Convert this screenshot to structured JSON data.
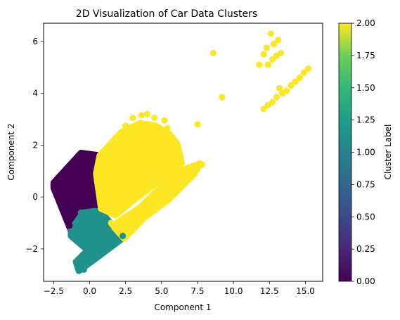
{
  "chart_data": {
    "type": "scatter",
    "title": "2D Visualization of Car Data Clusters",
    "xlabel": "Component 1",
    "ylabel": "Component 2",
    "xlim": [
      -3.2,
      16.2
    ],
    "ylim": [
      -3.25,
      6.7
    ],
    "xticks": [
      -2.5,
      0.0,
      2.5,
      5.0,
      7.5,
      10.0,
      12.5,
      15.0
    ],
    "xtick_labels": [
      "−2.5",
      "0.0",
      "2.5",
      "5.0",
      "7.5",
      "10.0",
      "12.5",
      "15.0"
    ],
    "yticks": [
      -2,
      0,
      2,
      4,
      6
    ],
    "ytick_labels": [
      "−2",
      "0",
      "2",
      "4",
      "6"
    ],
    "grid": false,
    "colorbar": {
      "label": "Cluster Label",
      "range": [
        0.0,
        2.0
      ],
      "ticks": [
        0.0,
        0.25,
        0.5,
        0.75,
        1.0,
        1.25,
        1.5,
        1.75,
        2.0
      ],
      "tick_labels": [
        "0.00",
        "0.25",
        "0.50",
        "0.75",
        "1.00",
        "1.25",
        "1.50",
        "1.75",
        "2.00"
      ],
      "colormap": "viridis"
    },
    "cluster_colors": {
      "0": "#440154",
      "1": "#21918c",
      "2": "#fde725"
    },
    "regions": [
      {
        "cluster": 0,
        "polygon": [
          [
            -2.5,
            0.55
          ],
          [
            -0.6,
            1.7
          ],
          [
            0.7,
            1.6
          ],
          [
            0.45,
            0.9
          ],
          [
            0.7,
            -0.3
          ],
          [
            0.2,
            -0.55
          ],
          [
            -0.6,
            -1.05
          ],
          [
            -1.3,
            -1.3
          ],
          [
            -2.5,
            0.35
          ]
        ]
      },
      {
        "cluster": 1,
        "polygon": [
          [
            -1.3,
            -1.25
          ],
          [
            -0.45,
            -0.6
          ],
          [
            0.25,
            -0.55
          ],
          [
            0.75,
            -0.55
          ],
          [
            1.45,
            -1.0
          ],
          [
            0.45,
            -1.5
          ],
          [
            -0.35,
            -1.95
          ],
          [
            -1.3,
            -1.5
          ]
        ]
      },
      {
        "cluster": 1,
        "polygon": [
          [
            -0.95,
            -2.5
          ],
          [
            1.4,
            -1.2
          ],
          [
            2.4,
            -1.55
          ],
          [
            0.6,
            -2.3
          ],
          [
            -0.75,
            -2.85
          ]
        ]
      },
      {
        "cluster": 2,
        "polygon": [
          [
            0.7,
            1.6
          ],
          [
            2.2,
            2.5
          ],
          [
            3.5,
            2.85
          ],
          [
            4.6,
            2.75
          ],
          [
            5.6,
            2.4
          ],
          [
            6.1,
            2.05
          ],
          [
            6.4,
            1.3
          ],
          [
            5.4,
            0.85
          ],
          [
            4.2,
            0.35
          ],
          [
            3.0,
            -0.15
          ],
          [
            1.8,
            -0.7
          ],
          [
            0.8,
            -0.45
          ],
          [
            0.45,
            0.9
          ]
        ]
      },
      {
        "cluster": 2,
        "polygon": [
          [
            1.6,
            -1.1
          ],
          [
            3.5,
            -0.4
          ],
          [
            5.2,
            0.5
          ],
          [
            6.5,
            1.05
          ],
          [
            7.7,
            1.3
          ],
          [
            7.3,
            0.9
          ],
          [
            5.5,
            -0.1
          ],
          [
            3.8,
            -0.8
          ],
          [
            2.4,
            -1.6
          ]
        ]
      }
    ],
    "points": [
      {
        "x": 8.6,
        "y": 5.55,
        "cluster": 2
      },
      {
        "x": 9.2,
        "y": 3.85,
        "cluster": 2
      },
      {
        "x": 12.6,
        "y": 6.3,
        "cluster": 2
      },
      {
        "x": 12.8,
        "y": 5.9,
        "cluster": 2
      },
      {
        "x": 13.1,
        "y": 6.05,
        "cluster": 2
      },
      {
        "x": 12.3,
        "y": 5.75,
        "cluster": 2
      },
      {
        "x": 12.1,
        "y": 5.5,
        "cluster": 2
      },
      {
        "x": 11.8,
        "y": 5.1,
        "cluster": 2
      },
      {
        "x": 12.4,
        "y": 5.1,
        "cluster": 2
      },
      {
        "x": 12.7,
        "y": 5.3,
        "cluster": 2
      },
      {
        "x": 13.0,
        "y": 5.45,
        "cluster": 2
      },
      {
        "x": 13.3,
        "y": 5.55,
        "cluster": 2
      },
      {
        "x": 13.2,
        "y": 4.2,
        "cluster": 2
      },
      {
        "x": 12.1,
        "y": 3.4,
        "cluster": 2
      },
      {
        "x": 12.4,
        "y": 3.55,
        "cluster": 2
      },
      {
        "x": 12.7,
        "y": 3.65,
        "cluster": 2
      },
      {
        "x": 13.0,
        "y": 3.85,
        "cluster": 2
      },
      {
        "x": 13.4,
        "y": 4.0,
        "cluster": 2
      },
      {
        "x": 13.7,
        "y": 4.1,
        "cluster": 2
      },
      {
        "x": 14.0,
        "y": 4.3,
        "cluster": 2
      },
      {
        "x": 14.3,
        "y": 4.45,
        "cluster": 2
      },
      {
        "x": 14.6,
        "y": 4.6,
        "cluster": 2
      },
      {
        "x": 14.9,
        "y": 4.8,
        "cluster": 2
      },
      {
        "x": 15.2,
        "y": 4.95,
        "cluster": 2
      },
      {
        "x": 3.0,
        "y": 3.05,
        "cluster": 2
      },
      {
        "x": 3.6,
        "y": 3.15,
        "cluster": 2
      },
      {
        "x": 4.0,
        "y": 3.2,
        "cluster": 2
      },
      {
        "x": 4.5,
        "y": 3.05,
        "cluster": 2
      },
      {
        "x": 5.2,
        "y": 2.95,
        "cluster": 2
      },
      {
        "x": 5.0,
        "y": 2.6,
        "cluster": 2
      },
      {
        "x": 5.4,
        "y": 2.65,
        "cluster": 2
      },
      {
        "x": 4.8,
        "y": 2.3,
        "cluster": 2
      },
      {
        "x": 7.5,
        "y": 2.8,
        "cluster": 2
      },
      {
        "x": 2.5,
        "y": 2.75,
        "cluster": 2
      },
      {
        "x": 4.6,
        "y": 1.1,
        "cluster": 2
      },
      {
        "x": 4.8,
        "y": 1.5,
        "cluster": 2
      },
      {
        "x": 1.5,
        "y": -1.0,
        "cluster": 2
      },
      {
        "x": 7.8,
        "y": 1.25,
        "cluster": 2
      },
      {
        "x": -0.6,
        "y": -0.6,
        "cluster": 1
      },
      {
        "x": -0.2,
        "y": -0.65,
        "cluster": 1
      },
      {
        "x": 0.4,
        "y": -0.55,
        "cluster": 1
      },
      {
        "x": -0.8,
        "y": -0.9,
        "cluster": 1
      },
      {
        "x": -1.2,
        "y": -1.45,
        "cluster": 1
      },
      {
        "x": -0.2,
        "y": -1.75,
        "cluster": 1
      },
      {
        "x": -0.5,
        "y": -1.7,
        "cluster": 1
      },
      {
        "x": -0.8,
        "y": -2.55,
        "cluster": 1
      },
      {
        "x": -0.6,
        "y": -2.75,
        "cluster": 1
      },
      {
        "x": -0.4,
        "y": -2.8,
        "cluster": 1
      },
      {
        "x": 1.3,
        "y": -1.25,
        "cluster": 1
      },
      {
        "x": 2.3,
        "y": -1.5,
        "cluster": 1
      },
      {
        "x": -2.4,
        "y": 0.45,
        "cluster": 0
      },
      {
        "x": -1.4,
        "y": -1.1,
        "cluster": 0
      },
      {
        "x": 0.0,
        "y": 1.65,
        "cluster": 0
      },
      {
        "x": -1.0,
        "y": 1.1,
        "cluster": 0
      }
    ]
  }
}
